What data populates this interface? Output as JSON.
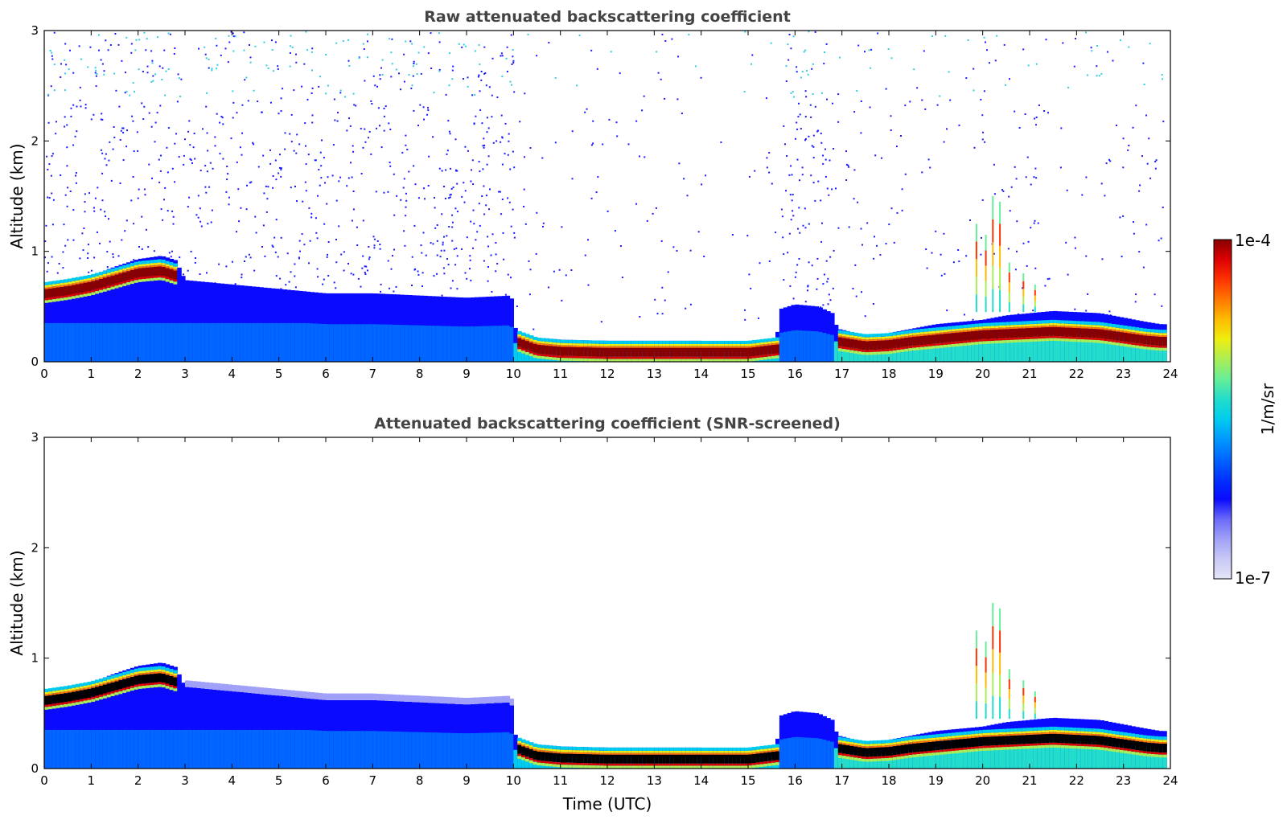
{
  "chart_data": [
    {
      "type": "heatmap",
      "title": "Raw attenuated backscattering coefficient",
      "xlabel": "",
      "ylabel": "Altitude (km)",
      "xlim": [
        0,
        24
      ],
      "ylim": [
        0,
        3
      ],
      "xticks": [
        "0",
        "1",
        "2",
        "3",
        "4",
        "5",
        "6",
        "7",
        "8",
        "9",
        "10",
        "11",
        "12",
        "13",
        "14",
        "15",
        "16",
        "17",
        "18",
        "19",
        "20",
        "21",
        "22",
        "23",
        "24"
      ],
      "yticks": [
        "0",
        "1",
        "2",
        "3"
      ],
      "screened": false,
      "layer_top_km": [
        [
          0.0,
          0.7
        ],
        [
          0.5,
          0.75
        ],
        [
          1.0,
          0.78
        ],
        [
          1.5,
          0.86
        ],
        [
          2.0,
          0.93
        ],
        [
          2.5,
          0.96
        ],
        [
          2.8,
          0.92
        ],
        [
          3.0,
          0.74
        ],
        [
          4.0,
          0.7
        ],
        [
          5.0,
          0.66
        ],
        [
          6.0,
          0.62
        ],
        [
          7.0,
          0.62
        ],
        [
          8.0,
          0.6
        ],
        [
          9.0,
          0.58
        ],
        [
          9.95,
          0.6
        ],
        [
          10.05,
          0.28
        ],
        [
          10.5,
          0.22
        ],
        [
          11.0,
          0.2
        ],
        [
          12.0,
          0.19
        ],
        [
          13.0,
          0.19
        ],
        [
          14.0,
          0.19
        ],
        [
          15.0,
          0.18
        ],
        [
          15.6,
          0.2
        ],
        [
          15.7,
          0.48
        ],
        [
          16.0,
          0.52
        ],
        [
          16.5,
          0.5
        ],
        [
          16.8,
          0.44
        ],
        [
          16.9,
          0.3
        ],
        [
          17.5,
          0.24
        ],
        [
          18.0,
          0.26
        ],
        [
          18.5,
          0.3
        ],
        [
          19.0,
          0.34
        ],
        [
          19.5,
          0.36
        ],
        [
          20.0,
          0.38
        ],
        [
          20.5,
          0.42
        ],
        [
          21.0,
          0.44
        ],
        [
          21.5,
          0.46
        ],
        [
          22.0,
          0.45
        ],
        [
          22.5,
          0.44
        ],
        [
          23.0,
          0.4
        ],
        [
          23.5,
          0.36
        ],
        [
          23.8,
          0.34
        ]
      ],
      "peak_layer_km": [
        [
          0.0,
          0.63
        ],
        [
          0.5,
          0.66
        ],
        [
          1.0,
          0.7
        ],
        [
          1.5,
          0.76
        ],
        [
          2.0,
          0.82
        ],
        [
          2.5,
          0.84
        ],
        [
          2.8,
          0.8
        ],
        [
          10.05,
          0.2
        ],
        [
          10.5,
          0.13
        ],
        [
          11.0,
          0.11
        ],
        [
          12.0,
          0.1
        ],
        [
          13.0,
          0.1
        ],
        [
          14.0,
          0.1
        ],
        [
          15.0,
          0.1
        ],
        [
          15.6,
          0.13
        ],
        [
          16.9,
          0.2
        ],
        [
          17.5,
          0.16
        ],
        [
          18.0,
          0.17
        ],
        [
          18.5,
          0.2
        ],
        [
          19.0,
          0.22
        ],
        [
          19.5,
          0.24
        ],
        [
          20.0,
          0.26
        ],
        [
          20.5,
          0.27
        ],
        [
          21.0,
          0.28
        ],
        [
          21.5,
          0.29
        ],
        [
          22.0,
          0.28
        ],
        [
          22.5,
          0.27
        ],
        [
          23.0,
          0.24
        ],
        [
          23.5,
          0.21
        ],
        [
          23.8,
          0.2
        ]
      ]
    },
    {
      "type": "heatmap",
      "title": "Attenuated backscattering coefficient (SNR-screened)",
      "xlabel": "Time (UTC)",
      "ylabel": "Altitude (km)",
      "xlim": [
        0,
        24
      ],
      "ylim": [
        0,
        3
      ],
      "xticks": [
        "0",
        "1",
        "2",
        "3",
        "4",
        "5",
        "6",
        "7",
        "8",
        "9",
        "10",
        "11",
        "12",
        "13",
        "14",
        "15",
        "16",
        "17",
        "18",
        "19",
        "20",
        "21",
        "22",
        "23",
        "24"
      ],
      "yticks": [
        "0",
        "1",
        "2",
        "3"
      ],
      "screened": true
    }
  ],
  "colorbar": {
    "label": "1/m/sr",
    "max_label": "1e-4",
    "min_label": "1e-7",
    "colors": [
      "#e4e4f7",
      "#c8c8f6",
      "#a0a0f8",
      "#6a6af8",
      "#0a0aff",
      "#0033ff",
      "#0066ff",
      "#0099ff",
      "#00ccee",
      "#22ddcc",
      "#66ee99",
      "#aaee55",
      "#eeee11",
      "#ffbb00",
      "#ff7700",
      "#ff3300",
      "#dd0000",
      "#880000"
    ]
  },
  "palette": {
    "black_core": "#000000",
    "noise_blue": "#1a1aff",
    "noise_cyan": "#33ccdd",
    "axis": "#000000"
  }
}
